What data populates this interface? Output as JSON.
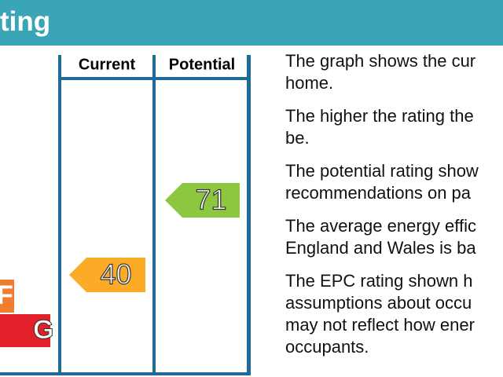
{
  "header": {
    "title": "ting"
  },
  "table": {
    "columns": [
      "Current",
      "Potential"
    ],
    "bands": [
      {
        "letter": "F",
        "color": "#ef7d2d"
      },
      {
        "letter": "G",
        "color": "#e2202a"
      }
    ],
    "current": {
      "value": 40,
      "color": "#fbab28"
    },
    "potential": {
      "value": 71,
      "color": "#8dc63f"
    }
  },
  "paragraphs": [
    [
      "The graph shows the cur",
      "home."
    ],
    [
      "The higher the rating the",
      "be."
    ],
    [
      "The potential rating show",
      "recommendations on pa"
    ],
    [
      "The average energy effic",
      "England and Wales is ba"
    ],
    [
      "The EPC rating shown h",
      "assumptions about occu",
      "may not reflect how ener",
      "occupants."
    ]
  ]
}
